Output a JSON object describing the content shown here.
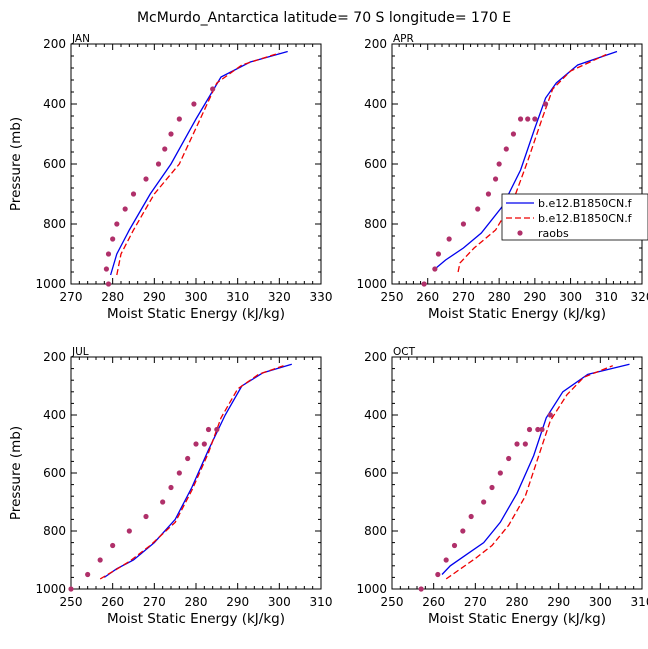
{
  "figure": {
    "title": "McMurdo_Antarctica  latitude= 70 S longitude= 170 E"
  },
  "colors": {
    "series1": "#0000ee",
    "series2": "#ee0000",
    "raobs": "#b0306a"
  },
  "legend": {
    "position": "right of APR panel",
    "entries": [
      "b.e12.B1850CN.f",
      "b.e12.B1850CN.f",
      "raobs"
    ]
  },
  "chart_data": [
    {
      "type": "line",
      "panel_label": "JAN",
      "xlabel": "Moist Static Energy (kJ/kg)",
      "ylabel": "Pressure (mb)",
      "xlim": [
        270,
        330
      ],
      "ylim": [
        1000,
        200
      ],
      "y_inverted": true,
      "xticks": [
        270,
        280,
        290,
        300,
        310,
        320,
        330
      ],
      "yticks": [
        200,
        400,
        600,
        800,
        1000
      ],
      "series": [
        {
          "name": "b.e12.B1850CN.f",
          "style": "solid",
          "x": [
            279.5,
            281,
            284,
            289,
            294,
            300,
            306,
            313,
            322
          ],
          "y": [
            970,
            900,
            820,
            700,
            600,
            450,
            310,
            260,
            225
          ]
        },
        {
          "name": "b.e12.B1850CN.f",
          "style": "dashed",
          "x": [
            281,
            282,
            285,
            290,
            296,
            301,
            305,
            311,
            320
          ],
          "y": [
            970,
            900,
            820,
            700,
            600,
            450,
            330,
            270,
            230
          ]
        },
        {
          "name": "raobs",
          "style": "markers",
          "x": [
            279,
            278.5,
            279,
            280,
            281,
            283,
            285,
            288,
            291,
            292.5,
            294,
            296,
            299.5,
            304
          ],
          "y": [
            1000,
            950,
            900,
            850,
            800,
            750,
            700,
            650,
            600,
            550,
            500,
            450,
            400,
            350
          ]
        }
      ]
    },
    {
      "type": "line",
      "panel_label": "APR",
      "xlabel": "Moist Static Energy (kJ/kg)",
      "ylabel": "",
      "xlim": [
        250,
        320
      ],
      "ylim": [
        1000,
        200
      ],
      "y_inverted": true,
      "xticks": [
        250,
        260,
        270,
        280,
        290,
        300,
        310,
        320
      ],
      "yticks": [
        200,
        400,
        600,
        800,
        1000
      ],
      "series": [
        {
          "name": "b.e12.B1850CN.f",
          "style": "solid",
          "x": [
            262,
            265,
            270,
            275,
            281,
            286,
            290,
            293,
            296,
            302,
            313
          ],
          "y": [
            950,
            920,
            880,
            830,
            740,
            620,
            480,
            380,
            330,
            270,
            225
          ]
        },
        {
          "name": "b.e12.B1850CN.f",
          "style": "dashed",
          "x": [
            268.5,
            269,
            273,
            279,
            284,
            288,
            292,
            295,
            300,
            310
          ],
          "y": [
            960,
            930,
            880,
            820,
            720,
            590,
            450,
            350,
            290,
            235
          ]
        },
        {
          "name": "raobs",
          "style": "markers",
          "x": [
            259,
            262,
            263,
            266,
            270,
            274,
            277,
            279,
            280,
            282,
            284,
            286,
            288,
            290,
            293
          ],
          "y": [
            1000,
            950,
            900,
            850,
            800,
            750,
            700,
            650,
            600,
            550,
            500,
            450,
            450,
            450,
            400
          ]
        }
      ]
    },
    {
      "type": "line",
      "panel_label": "JUL",
      "xlabel": "Moist Static Energy (kJ/kg)",
      "ylabel": "Pressure (mb)",
      "xlim": [
        250,
        310
      ],
      "ylim": [
        1000,
        200
      ],
      "y_inverted": true,
      "xticks": [
        250,
        260,
        270,
        280,
        290,
        300,
        310
      ],
      "yticks": [
        200,
        400,
        600,
        800,
        1000
      ],
      "series": [
        {
          "name": "b.e12.B1850CN.f",
          "style": "solid",
          "x": [
            258,
            261,
            265,
            270,
            275,
            279,
            283,
            287,
            291,
            296,
            303
          ],
          "y": [
            960,
            930,
            900,
            840,
            760,
            650,
            520,
            400,
            300,
            255,
            225
          ]
        },
        {
          "name": "b.e12.B1850CN.f",
          "style": "dashed",
          "x": [
            257,
            260,
            264,
            269,
            275,
            279,
            283,
            286,
            290,
            295,
            301
          ],
          "y": [
            965,
            940,
            905,
            850,
            770,
            660,
            530,
            410,
            310,
            260,
            230
          ]
        },
        {
          "name": "raobs",
          "style": "markers",
          "x": [
            250,
            254,
            257,
            260,
            264,
            268,
            272,
            274,
            276,
            278,
            280,
            282,
            283,
            285
          ],
          "y": [
            1000,
            950,
            900,
            850,
            800,
            750,
            700,
            650,
            600,
            550,
            500,
            500,
            450,
            450
          ]
        }
      ]
    },
    {
      "type": "line",
      "panel_label": "OCT",
      "xlabel": "Moist Static Energy (kJ/kg)",
      "ylabel": "",
      "xlim": [
        250,
        310
      ],
      "ylim": [
        1000,
        200
      ],
      "y_inverted": true,
      "xticks": [
        250,
        260,
        270,
        280,
        290,
        300,
        310
      ],
      "yticks": [
        200,
        400,
        600,
        800,
        1000
      ],
      "series": [
        {
          "name": "b.e12.B1850CN.f",
          "style": "solid",
          "x": [
            262,
            264,
            268,
            272,
            276,
            280,
            284,
            287,
            291,
            297,
            307
          ],
          "y": [
            950,
            920,
            880,
            840,
            770,
            670,
            540,
            410,
            320,
            260,
            225
          ]
        },
        {
          "name": "b.e12.B1850CN.f",
          "style": "dashed",
          "x": [
            263,
            266,
            270,
            274,
            278,
            282,
            285,
            288,
            292,
            296,
            303
          ],
          "y": [
            965,
            935,
            895,
            850,
            780,
            680,
            550,
            420,
            330,
            270,
            230
          ]
        },
        {
          "name": "raobs",
          "style": "markers",
          "x": [
            257,
            261,
            263,
            265,
            267,
            269,
            272,
            274,
            276,
            278,
            280,
            282,
            283,
            285,
            286,
            288
          ],
          "y": [
            1000,
            950,
            900,
            850,
            800,
            750,
            700,
            650,
            600,
            550,
            500,
            500,
            450,
            450,
            450,
            400
          ]
        }
      ]
    }
  ]
}
